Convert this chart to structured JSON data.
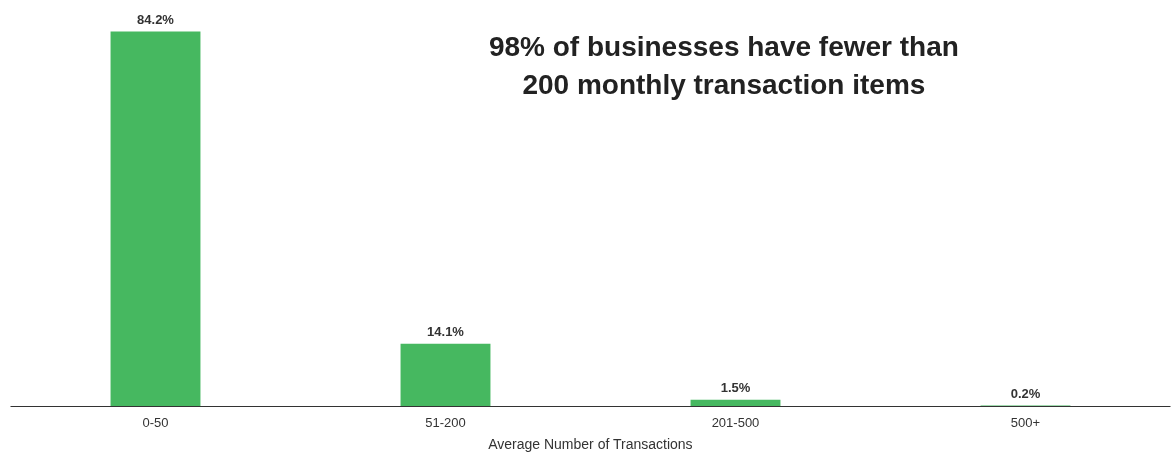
{
  "chart_data": {
    "type": "bar",
    "title": "98% of businesses have fewer than\n200 monthly transaction items",
    "xlabel": "Average Number of Transactions",
    "categories": [
      "0-50",
      "51-200",
      "201-500",
      "500+"
    ],
    "values": [
      84.2,
      14.1,
      1.5,
      0.2
    ],
    "color": "#46b860",
    "value_labels": [
      "84.2%",
      "14.1%",
      "1.5%",
      "0.2%"
    ],
    "grid": false
  }
}
